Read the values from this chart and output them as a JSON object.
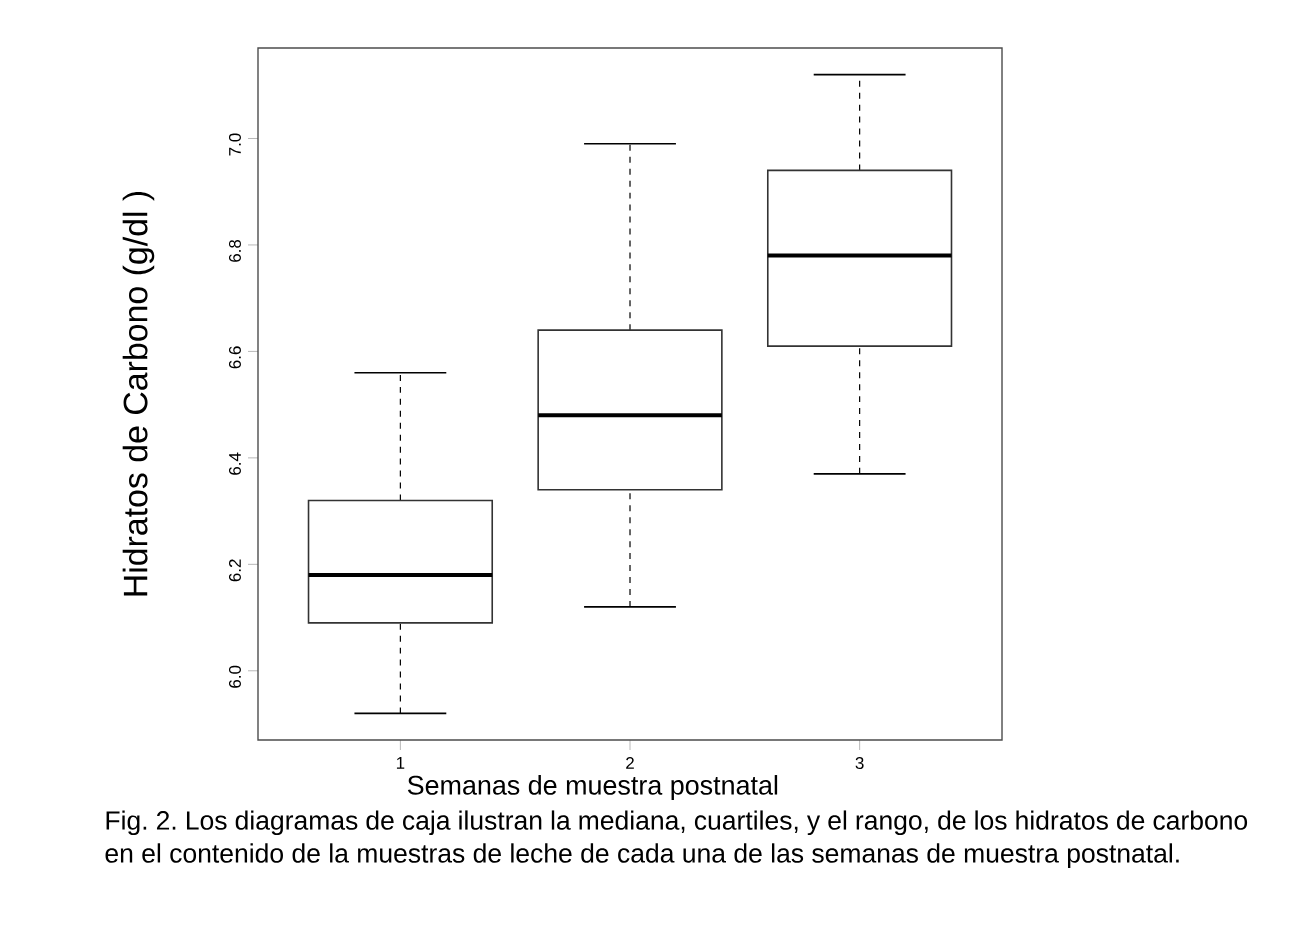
{
  "chart_data": {
    "type": "box",
    "xlabel": "Semanas de muestra postnatal",
    "ylabel": "Hidratos de Carbono  (g/dl )",
    "categories": [
      "1",
      "2",
      "3"
    ],
    "boxes": [
      {
        "low": 5.92,
        "q1": 6.09,
        "median": 6.18,
        "q3": 6.32,
        "high": 6.56
      },
      {
        "low": 6.12,
        "q1": 6.34,
        "median": 6.48,
        "q3": 6.64,
        "high": 6.99
      },
      {
        "low": 6.37,
        "q1": 6.61,
        "median": 6.78,
        "q3": 6.94,
        "high": 7.12
      }
    ],
    "ylim": [
      5.87,
      7.17
    ],
    "yticks": [
      {
        "value": 6.0,
        "label": "6.0"
      },
      {
        "value": 6.2,
        "label": "6.2"
      },
      {
        "value": 6.4,
        "label": "6.4"
      },
      {
        "value": 6.6,
        "label": "6.6"
      },
      {
        "value": 6.8,
        "label": "6.8"
      },
      {
        "value": 7.0,
        "label": "7.0"
      }
    ],
    "annotations": [
      "Fig. 2. Los diagramas de caja ilustran la mediana, cuartiles, y el rango, de los hidratos de carbono  en el contenido de la muestras de leche de cada una de las semanas de muestra postnatal."
    ]
  }
}
